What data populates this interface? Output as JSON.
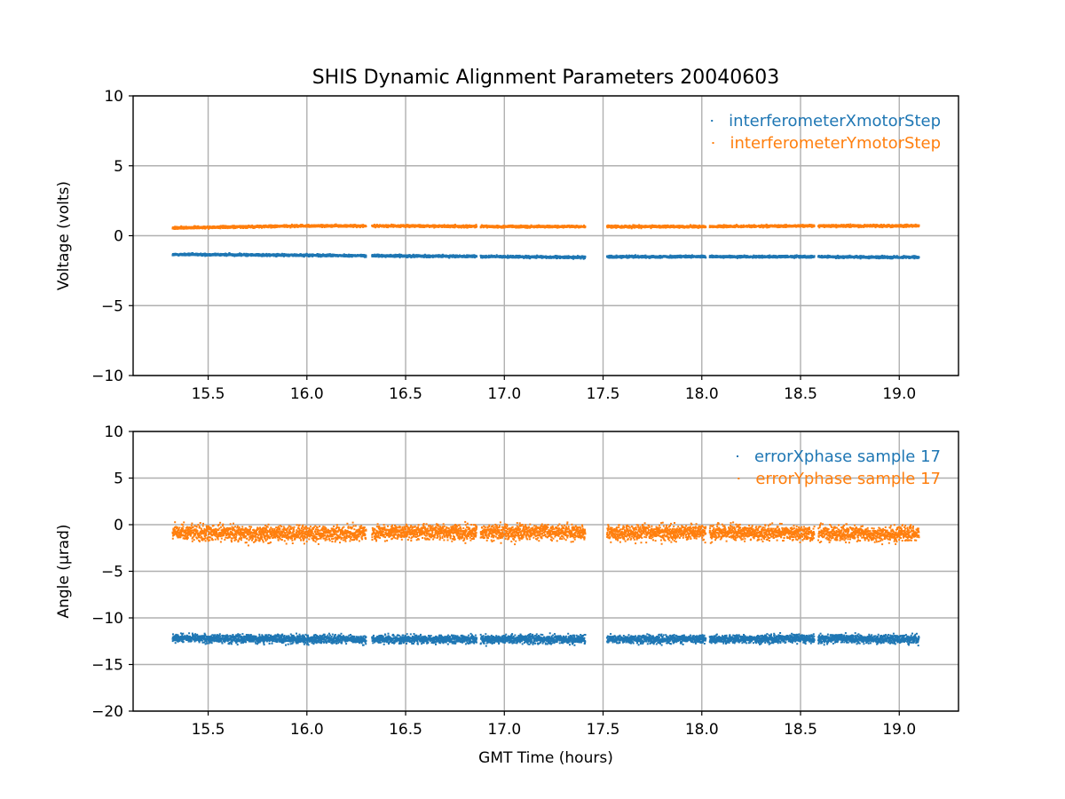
{
  "title": "SHIS Dynamic Alignment Parameters 20040603",
  "colors": {
    "blue": "#1f77b4",
    "orange": "#ff7f0e",
    "grid": "#b0b0b0"
  },
  "chart_data": [
    {
      "type": "scatter",
      "xlabel": "",
      "ylabel": "Voltage (volts)",
      "xlim": [
        15.12,
        19.3
      ],
      "ylim": [
        -10,
        10
      ],
      "xticks": [
        15.5,
        16.0,
        16.5,
        17.0,
        17.5,
        18.0,
        18.5,
        19.0
      ],
      "xtick_labels": [
        "15.5",
        "16.0",
        "16.5",
        "17.0",
        "17.5",
        "18.0",
        "18.5",
        "19.0"
      ],
      "yticks": [
        -10,
        -5,
        0,
        5,
        10
      ],
      "ytick_labels": [
        "−10",
        "−5",
        "0",
        "5",
        "10"
      ],
      "grid": true,
      "legend_position": "top-right",
      "segments": [
        [
          15.32,
          16.3
        ],
        [
          16.33,
          16.86
        ],
        [
          16.88,
          17.41
        ],
        [
          17.52,
          18.02
        ],
        [
          18.04,
          18.57
        ],
        [
          18.59,
          19.1
        ]
      ],
      "series": [
        {
          "name": "interferometerXmotorStep",
          "color": "#1f77b4",
          "x": [
            15.3,
            15.5,
            16.0,
            16.5,
            17.0,
            17.4,
            17.5,
            18.0,
            18.5,
            19.1
          ],
          "y": [
            -1.35,
            -1.35,
            -1.4,
            -1.45,
            -1.5,
            -1.55,
            -1.5,
            -1.5,
            -1.5,
            -1.55
          ],
          "spread": 0.08
        },
        {
          "name": "interferometerYmotorStep",
          "color": "#ff7f0e",
          "x": [
            15.3,
            15.5,
            16.0,
            16.5,
            17.0,
            17.4,
            17.5,
            18.0,
            18.5,
            19.1
          ],
          "y": [
            0.55,
            0.6,
            0.7,
            0.7,
            0.65,
            0.65,
            0.65,
            0.65,
            0.7,
            0.7
          ],
          "spread": 0.08
        }
      ]
    },
    {
      "type": "scatter",
      "xlabel": "GMT Time (hours)",
      "ylabel": "Angle (μrad)",
      "xlim": [
        15.12,
        19.3
      ],
      "ylim": [
        -20,
        10
      ],
      "xticks": [
        15.5,
        16.0,
        16.5,
        17.0,
        17.5,
        18.0,
        18.5,
        19.0
      ],
      "xtick_labels": [
        "15.5",
        "16.0",
        "16.5",
        "17.0",
        "17.5",
        "18.0",
        "18.5",
        "19.0"
      ],
      "yticks": [
        -20,
        -15,
        -10,
        -5,
        0,
        5,
        10
      ],
      "ytick_labels": [
        "−20",
        "−15",
        "−10",
        "−5",
        "0",
        "5",
        "10"
      ],
      "grid": true,
      "legend_position": "top-right",
      "segments": [
        [
          15.32,
          16.3
        ],
        [
          16.33,
          16.86
        ],
        [
          16.88,
          17.41
        ],
        [
          17.52,
          18.02
        ],
        [
          18.04,
          18.57
        ],
        [
          18.59,
          19.1
        ]
      ],
      "series": [
        {
          "name": "errorXphase sample 17",
          "color": "#1f77b4",
          "x": [
            15.3,
            15.5,
            16.0,
            16.5,
            17.0,
            17.4,
            17.5,
            18.0,
            18.5,
            19.1
          ],
          "y": [
            -12.1,
            -12.2,
            -12.3,
            -12.3,
            -12.3,
            -12.3,
            -12.3,
            -12.3,
            -12.2,
            -12.3
          ],
          "spread": 0.45
        },
        {
          "name": "errorYphase sample 17",
          "color": "#ff7f0e",
          "x": [
            15.3,
            15.5,
            16.0,
            16.5,
            17.0,
            17.4,
            17.5,
            18.0,
            18.5,
            19.1
          ],
          "y": [
            -0.8,
            -0.9,
            -1.0,
            -0.8,
            -0.8,
            -0.8,
            -0.9,
            -0.8,
            -0.9,
            -1.0
          ],
          "spread": 0.8
        }
      ]
    }
  ]
}
